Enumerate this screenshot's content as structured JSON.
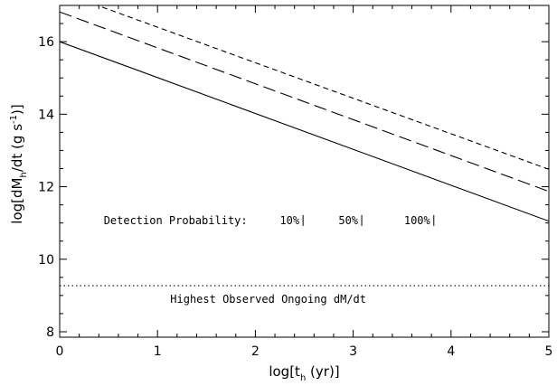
{
  "chart_data": {
    "type": "line",
    "xlabel": "log[t_h (yr)]",
    "ylabel": "log[dM_h/dt (g s^-1)]",
    "xlim": [
      0,
      5
    ],
    "ylim": [
      7.85,
      17
    ],
    "xticks": [
      0,
      1,
      2,
      3,
      4,
      5
    ],
    "yticks": [
      8,
      10,
      12,
      14,
      16
    ],
    "grid": false,
    "series": [
      {
        "name": "10%",
        "style": "solid",
        "color": "#000000",
        "x": [
          0,
          5
        ],
        "y": [
          16.0,
          11.05
        ]
      },
      {
        "name": "50%",
        "style": "long-dash",
        "color": "#000000",
        "x": [
          0,
          5
        ],
        "y": [
          16.82,
          11.87
        ]
      },
      {
        "name": "100%",
        "style": "short-dash",
        "color": "#000000",
        "x": [
          0,
          5
        ],
        "y": [
          17.38,
          12.48
        ]
      }
    ],
    "reference_lines": [
      {
        "label": "Highest Observed Ongoing dM/dt",
        "style": "dotted",
        "y": 9.27
      }
    ],
    "annotations": {
      "legend_title": "Detection Probability:",
      "legend_items": [
        "10%",
        "50%",
        "100%"
      ],
      "legend_y": 11.07,
      "legend_x": [
        0.45,
        2.25,
        2.85,
        3.52
      ]
    }
  }
}
